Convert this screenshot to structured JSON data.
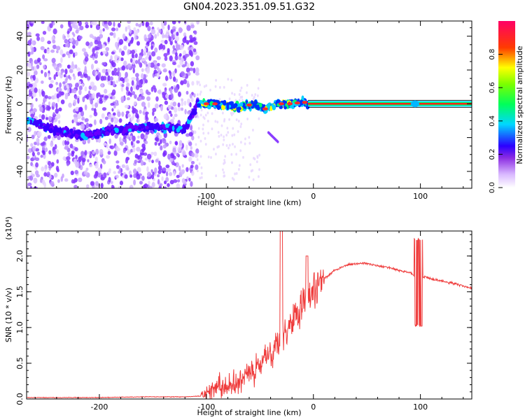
{
  "title": "GN04.2023.351.09.51.G32",
  "chart_data": [
    {
      "type": "heatmap",
      "xlabel": "Height of straight line (km)",
      "ylabel": "Frequency (Hz)",
      "xlim": [
        -268,
        148
      ],
      "ylim": [
        -50,
        49
      ],
      "xticks": [
        -200,
        -100,
        0,
        100
      ],
      "yticks": [
        -40,
        -20,
        0,
        20,
        40
      ],
      "colorbar": {
        "label": "Normalized spectral amplitude",
        "range": [
          0,
          1
        ],
        "ticks": [
          0.0,
          0.2,
          0.4,
          0.6,
          0.8
        ]
      },
      "ridge": [
        {
          "x": -265,
          "f": -10
        },
        {
          "x": -240,
          "f": -16
        },
        {
          "x": -215,
          "f": -19
        },
        {
          "x": -190,
          "f": -16
        },
        {
          "x": -165,
          "f": -14
        },
        {
          "x": -140,
          "f": -14
        },
        {
          "x": -120,
          "f": -15
        },
        {
          "x": -108,
          "f": 0
        },
        {
          "x": -90,
          "f": 0
        },
        {
          "x": -70,
          "f": -2
        },
        {
          "x": -55,
          "f": 0
        },
        {
          "x": -45,
          "f": -3
        },
        {
          "x": -35,
          "f": 0
        },
        {
          "x": -20,
          "f": 0
        },
        {
          "x": -10,
          "f": 1
        },
        {
          "x": 0,
          "f": 0
        },
        {
          "x": 148,
          "f": 0
        }
      ]
    },
    {
      "type": "line",
      "xlabel": "Height of straight line (km)",
      "ylabel": "SNR (10 * v/v)",
      "scale_label": "(x10⁴)",
      "xlim": [
        -268,
        148
      ],
      "ylim": [
        0,
        2.35
      ],
      "xticks": [
        -200,
        -100,
        0,
        100
      ],
      "yticks": [
        0.0,
        0.5,
        1.0,
        1.5,
        2.0
      ],
      "series": [
        {
          "color": "#ef3b3b",
          "x": [
            -268,
            -240,
            -200,
            -160,
            -120,
            -105,
            -100,
            -95,
            -90,
            -85,
            -80,
            -75,
            -70,
            -65,
            -60,
            -55,
            -50,
            -45,
            -40,
            -35,
            -30,
            -25,
            -20,
            -15,
            -10,
            -5,
            0,
            10,
            20,
            30,
            40,
            50,
            60,
            70,
            80,
            90,
            95,
            100,
            105,
            110,
            120,
            130,
            140,
            148
          ],
          "values": [
            0.02,
            0.02,
            0.02,
            0.03,
            0.03,
            0.04,
            0.06,
            0.12,
            0.18,
            0.12,
            0.18,
            0.22,
            0.28,
            0.3,
            0.4,
            0.35,
            0.5,
            0.65,
            0.6,
            0.75,
            0.9,
            0.95,
            1.05,
            1.2,
            1.35,
            1.4,
            1.55,
            1.68,
            1.8,
            1.87,
            1.89,
            1.9,
            1.86,
            1.84,
            1.8,
            1.77,
            1.73,
            1.72,
            1.71,
            1.68,
            1.65,
            1.62,
            1.58,
            1.55
          ]
        }
      ]
    }
  ]
}
